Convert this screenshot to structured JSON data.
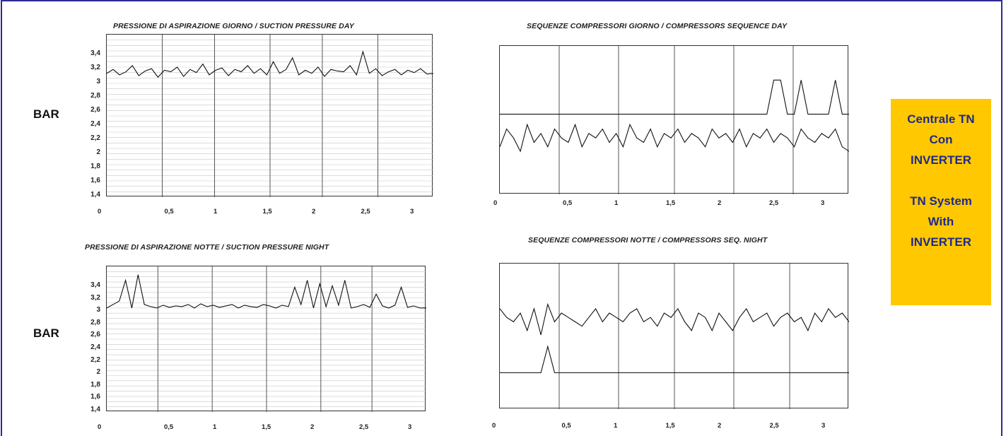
{
  "chart_data": [
    {
      "type": "line",
      "title": "PRESSIONE DI ASPIRAZIONE GIORNO / SUCTION PRESSURE DAY",
      "ylabel": "BAR",
      "yticks": [
        "3,4",
        "3,2",
        "3",
        "2,8",
        "2,6",
        "2,4",
        "2,2",
        "2",
        "1,8",
        "1,6",
        "1,4"
      ],
      "xticks": [
        "0",
        "0,5",
        "1",
        "1,5",
        "2",
        "2,5",
        "3"
      ],
      "ylim": [
        1.4,
        3.5
      ],
      "xlim": [
        0,
        3.5
      ],
      "series": [
        {
          "values": [
            3.0,
            3.05,
            2.98,
            3.02,
            3.1,
            2.97,
            3.03,
            3.06,
            2.95,
            3.04,
            3.02,
            3.08,
            2.96,
            3.05,
            3.01,
            3.12,
            2.98,
            3.04,
            3.07,
            2.97,
            3.05,
            3.02,
            3.1,
            3.0,
            3.06,
            2.98,
            3.15,
            3.0,
            3.05,
            3.2,
            2.98,
            3.04,
            3.0,
            3.08,
            2.96,
            3.05,
            3.03,
            3.02,
            3.1,
            2.98,
            3.28,
            3.0,
            3.06,
            2.97,
            3.02,
            3.05,
            2.98,
            3.04,
            3.01,
            3.06,
            2.99,
            3.0
          ]
        }
      ]
    },
    {
      "type": "line",
      "title": "SEQUENZE COMPRESSORI GIORNO / COMPRESSORS SEQUENCE DAY",
      "xticks": [
        "0",
        "0,5",
        "1",
        "1,5",
        "2",
        "2,5",
        "3"
      ],
      "xlim": [
        0,
        3.5
      ],
      "series": [
        {
          "values": [
            0,
            0,
            0,
            0,
            0,
            0,
            0,
            0,
            0,
            0,
            0,
            0,
            0,
            0,
            0,
            0,
            0,
            0,
            0,
            0,
            0,
            0,
            0,
            0,
            0,
            0,
            0,
            0,
            0,
            0,
            0,
            0,
            0,
            0,
            0,
            0,
            0,
            0,
            0,
            0,
            1,
            1,
            0,
            0,
            1,
            0,
            0,
            0,
            0,
            1,
            0,
            0
          ]
        },
        {
          "values": [
            0.3,
            0.7,
            0.5,
            0.2,
            0.8,
            0.4,
            0.6,
            0.3,
            0.7,
            0.5,
            0.4,
            0.8,
            0.3,
            0.6,
            0.5,
            0.7,
            0.4,
            0.6,
            0.3,
            0.8,
            0.5,
            0.4,
            0.7,
            0.3,
            0.6,
            0.5,
            0.7,
            0.4,
            0.6,
            0.5,
            0.3,
            0.7,
            0.5,
            0.6,
            0.4,
            0.7,
            0.3,
            0.6,
            0.5,
            0.7,
            0.4,
            0.6,
            0.5,
            0.3,
            0.7,
            0.5,
            0.4,
            0.6,
            0.5,
            0.7,
            0.3,
            0.2
          ]
        }
      ]
    },
    {
      "type": "line",
      "title": "PRESSIONE DI ASPIRAZIONE NOTTE / SUCTION PRESSURE NIGHT",
      "ylabel": "BAR",
      "yticks": [
        "3,4",
        "3,2",
        "3",
        "2,8",
        "2,6",
        "2,4",
        "2,2",
        "2",
        "1,8",
        "1,6",
        "1,4"
      ],
      "xticks": [
        "0",
        "0,5",
        "1",
        "1,5",
        "2",
        "2,5",
        "3"
      ],
      "ylim": [
        1.4,
        3.5
      ],
      "xlim": [
        0,
        3.5
      ],
      "series": [
        {
          "values": [
            2.9,
            2.95,
            3.0,
            3.3,
            2.9,
            3.38,
            2.95,
            2.92,
            2.9,
            2.94,
            2.91,
            2.93,
            2.92,
            2.95,
            2.9,
            2.96,
            2.92,
            2.94,
            2.91,
            2.93,
            2.95,
            2.9,
            2.94,
            2.92,
            2.91,
            2.95,
            2.93,
            2.9,
            2.94,
            2.92,
            3.2,
            2.95,
            3.3,
            2.9,
            3.25,
            2.92,
            3.22,
            2.94,
            3.3,
            2.9,
            2.92,
            2.95,
            2.91,
            3.1,
            2.93,
            2.9,
            2.94,
            3.2,
            2.91,
            2.93,
            2.9,
            2.9
          ]
        }
      ]
    },
    {
      "type": "line",
      "title": "SEQUENZE COMPRESSORI NOTTE / COMPRESSORS SEQ. NIGHT",
      "xticks": [
        "0",
        "0,5",
        "1",
        "1,5",
        "2",
        "2,5",
        "3"
      ],
      "xlim": [
        0,
        3.5
      ],
      "series": [
        {
          "values": [
            0.8,
            0.6,
            0.5,
            0.7,
            0.3,
            0.8,
            0.2,
            0.9,
            0.5,
            0.7,
            0.6,
            0.5,
            0.4,
            0.6,
            0.8,
            0.5,
            0.7,
            0.6,
            0.5,
            0.7,
            0.8,
            0.5,
            0.6,
            0.4,
            0.7,
            0.6,
            0.8,
            0.5,
            0.3,
            0.7,
            0.6,
            0.3,
            0.7,
            0.5,
            0.3,
            0.6,
            0.8,
            0.5,
            0.6,
            0.7,
            0.4,
            0.6,
            0.7,
            0.5,
            0.6,
            0.3,
            0.7,
            0.5,
            0.8,
            0.6,
            0.7,
            0.5
          ]
        },
        {
          "values": [
            0,
            0,
            0,
            0,
            0,
            0,
            0,
            0.6,
            0,
            0,
            0,
            0,
            0,
            0,
            0,
            0,
            0,
            0,
            0,
            0,
            0,
            0,
            0,
            0,
            0,
            0,
            0,
            0,
            0,
            0,
            0,
            0,
            0,
            0,
            0,
            0,
            0,
            0,
            0,
            0,
            0,
            0,
            0,
            0,
            0,
            0,
            0,
            0,
            0,
            0,
            0,
            0
          ]
        }
      ]
    }
  ],
  "labels": {
    "bar_top": "BAR",
    "bar_bottom": "BAR"
  },
  "info_box": {
    "line1": "Centrale TN",
    "line2": "Con",
    "line3": "INVERTER",
    "line4": "TN System",
    "line5": "With",
    "line6": "INVERTER",
    "background": "#ffc800",
    "text_color": "#1f2a8c"
  }
}
